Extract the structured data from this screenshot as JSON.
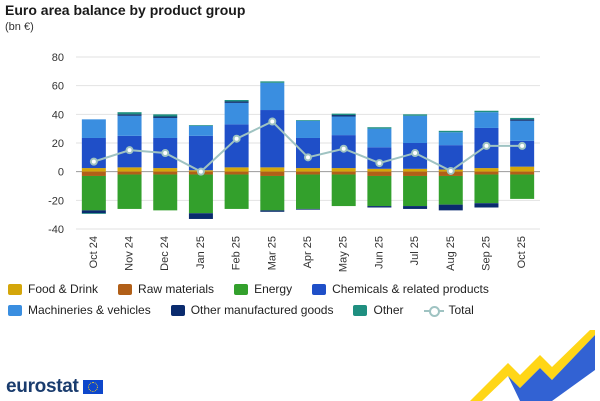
{
  "title": "Euro area balance by product group",
  "subtitle": "(bn €)",
  "logo_text": "eurostat",
  "colors": {
    "food_drink": "#d4a60a",
    "raw_materials": "#b15f18",
    "energy": "#33a02c",
    "chemicals": "#1f4fc8",
    "machineries": "#3a8ee0",
    "other_manufactured": "#0a2b6e",
    "other": "#1f8f80",
    "total": "#9fc3c2"
  },
  "chart_data": {
    "type": "bar",
    "stacked": true,
    "categories": [
      "Oct 24",
      "Nov 24",
      "Dec 24",
      "Jan 25",
      "Feb 25",
      "Mar 25",
      "Apr 25",
      "May 25",
      "Jun 25",
      "Jul 25",
      "Aug 25",
      "Sep 25",
      "Oct 25"
    ],
    "ylim": [
      -40,
      80
    ],
    "yticks": [
      -40,
      -20,
      0,
      20,
      40,
      60,
      80
    ],
    "grid": true,
    "legend_position": "bottom",
    "series": [
      {
        "name": "Food & Drink",
        "color_key": "food_drink",
        "values": [
          2.5,
          3,
          2.5,
          1,
          3,
          3,
          2.5,
          2.5,
          2,
          2,
          1.5,
          2.5,
          3.5
        ]
      },
      {
        "name": "Raw materials",
        "color_key": "raw_materials",
        "values": [
          -3,
          -2,
          -2,
          -2,
          -2,
          -3,
          -2,
          -2,
          -3,
          -3,
          -3,
          -2,
          -2
        ]
      },
      {
        "name": "Energy",
        "color_key": "energy",
        "values": [
          -24,
          -24,
          -25,
          -27,
          -24,
          -24,
          -24,
          -22,
          -21,
          -21,
          -20,
          -20,
          -17
        ]
      },
      {
        "name": "Chemicals & related products",
        "color_key": "chemicals",
        "values": [
          21,
          22,
          21,
          24,
          30,
          40,
          21,
          23,
          15,
          18,
          17,
          28,
          18
        ]
      },
      {
        "name": "Machineries & vehicles",
        "color_key": "machineries",
        "values": [
          13,
          14,
          14,
          7,
          15,
          19,
          12,
          13,
          13,
          19,
          9,
          11,
          14
        ]
      },
      {
        "name": "Other manufactured goods",
        "color_key": "other_manufactured",
        "values": [
          -2,
          1,
          1,
          -4,
          1,
          -1,
          -0.5,
          1,
          -1,
          -2,
          -4,
          -3,
          1
        ]
      },
      {
        "name": "Other",
        "color_key": "other",
        "values": [
          -0.5,
          1.5,
          1.5,
          0.5,
          1,
          1,
          0.5,
          1,
          1,
          1,
          1,
          1,
          1
        ]
      },
      {
        "name": "Total",
        "type": "line",
        "color_key": "total",
        "values": [
          7,
          15,
          13,
          0,
          23,
          35,
          10,
          16,
          6,
          13,
          0.5,
          18,
          18
        ]
      }
    ]
  }
}
